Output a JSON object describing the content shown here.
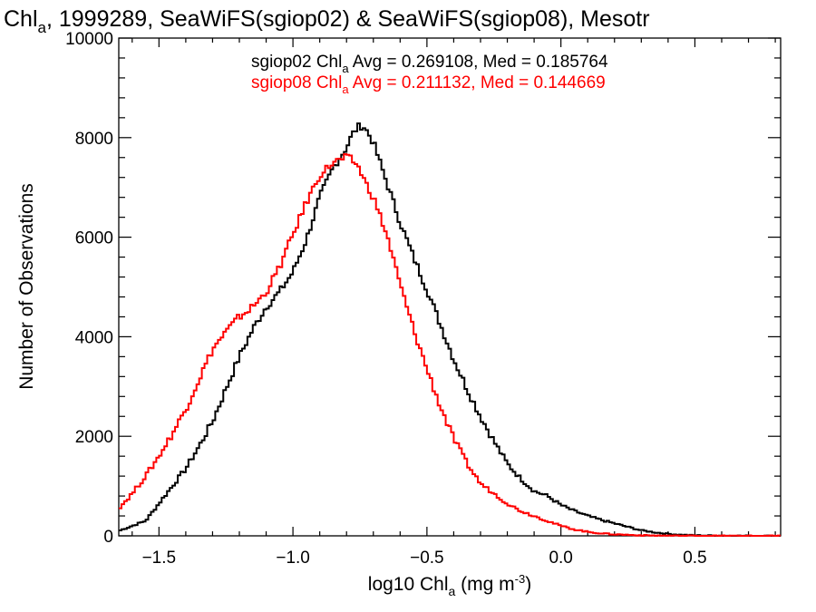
{
  "chart_data": {
    "type": "line",
    "title": {
      "prefix": "Chl",
      "sub": "a",
      "suffix": ", 1999289, SeaWiFS(sgiop02) & SeaWiFS(sgiop08), Mesotr"
    },
    "xlabel": {
      "prefix": "log10 Chl",
      "sub": "a",
      "suffix": " (mg m",
      "sup": "-3",
      "close": ")"
    },
    "ylabel": "Number of Observations",
    "xlim": [
      -1.65,
      0.82
    ],
    "ylim": [
      0,
      10000
    ],
    "x_ticks": [
      -1.5,
      -1.0,
      -0.5,
      0.0,
      0.5
    ],
    "x_tick_labels": [
      "−1.5",
      "−1.0",
      "−0.5",
      "0.0",
      "0.5"
    ],
    "y_ticks": [
      0,
      2000,
      4000,
      6000,
      8000,
      10000
    ],
    "y_tick_labels": [
      "0",
      "2000",
      "4000",
      "6000",
      "8000",
      "10000"
    ],
    "grid": false,
    "legend_position": "top-right",
    "colors": {
      "sgiop02": "#000000",
      "sgiop08": "#ff0000"
    },
    "legend": [
      {
        "series": "sgiop02",
        "prefix": "sgiop02 Chl",
        "sub": "a",
        "suffix": " Avg = 0.269108, Med = 0.185764",
        "color": "#000000"
      },
      {
        "series": "sgiop08",
        "prefix": "sgiop08 Chl",
        "sub": "a",
        "suffix": " Avg = 0.211132, Med = 0.144669",
        "color": "#ff0000"
      }
    ],
    "series": [
      {
        "key": "sgiop02",
        "color": "#000000",
        "x": [
          -1.65,
          -1.6,
          -1.55,
          -1.5,
          -1.45,
          -1.4,
          -1.35,
          -1.3,
          -1.25,
          -1.2,
          -1.15,
          -1.1,
          -1.05,
          -1.0,
          -0.95,
          -0.9,
          -0.85,
          -0.8,
          -0.78,
          -0.76,
          -0.74,
          -0.72,
          -0.7,
          -0.65,
          -0.6,
          -0.55,
          -0.5,
          -0.45,
          -0.4,
          -0.35,
          -0.3,
          -0.25,
          -0.2,
          -0.15,
          -0.1,
          -0.05,
          0.0,
          0.05,
          0.1,
          0.15,
          0.2,
          0.25,
          0.3,
          0.35,
          0.4,
          0.45,
          0.5,
          0.55,
          0.6,
          0.65,
          0.7,
          0.75,
          0.82
        ],
        "y": [
          100,
          200,
          300,
          650,
          1000,
          1350,
          1800,
          2300,
          2950,
          3600,
          4150,
          4600,
          4900,
          5300,
          5950,
          6800,
          7400,
          7800,
          8050,
          8200,
          8250,
          8100,
          7900,
          7100,
          6300,
          5600,
          4950,
          4250,
          3550,
          2950,
          2400,
          1900,
          1450,
          1150,
          900,
          800,
          620,
          500,
          400,
          320,
          250,
          180,
          110,
          70,
          40,
          20,
          10,
          6,
          4,
          2,
          1,
          0,
          0
        ]
      },
      {
        "key": "sgiop08",
        "color": "#ff0000",
        "x": [
          -1.65,
          -1.6,
          -1.55,
          -1.5,
          -1.45,
          -1.4,
          -1.35,
          -1.3,
          -1.25,
          -1.2,
          -1.15,
          -1.1,
          -1.05,
          -1.0,
          -0.95,
          -0.9,
          -0.85,
          -0.8,
          -0.78,
          -0.76,
          -0.75,
          -0.73,
          -0.7,
          -0.65,
          -0.6,
          -0.55,
          -0.5,
          -0.45,
          -0.4,
          -0.35,
          -0.3,
          -0.25,
          -0.2,
          -0.15,
          -0.1,
          -0.05,
          0.0,
          0.05,
          0.1,
          0.15,
          0.2,
          0.25,
          0.3,
          0.35,
          0.4,
          0.45,
          0.5,
          0.55,
          0.6,
          0.65,
          0.7,
          0.75,
          0.82
        ],
        "y": [
          550,
          850,
          1200,
          1600,
          2050,
          2550,
          3150,
          3750,
          4100,
          4400,
          4600,
          4900,
          5400,
          6050,
          6700,
          7250,
          7500,
          7600,
          7550,
          7450,
          7350,
          7100,
          6800,
          6050,
          5050,
          4150,
          3350,
          2600,
          1950,
          1450,
          1050,
          850,
          650,
          500,
          400,
          300,
          200,
          130,
          80,
          50,
          30,
          20,
          10,
          6,
          4,
          2,
          1,
          0,
          0,
          0,
          0,
          0,
          0
        ]
      }
    ]
  }
}
